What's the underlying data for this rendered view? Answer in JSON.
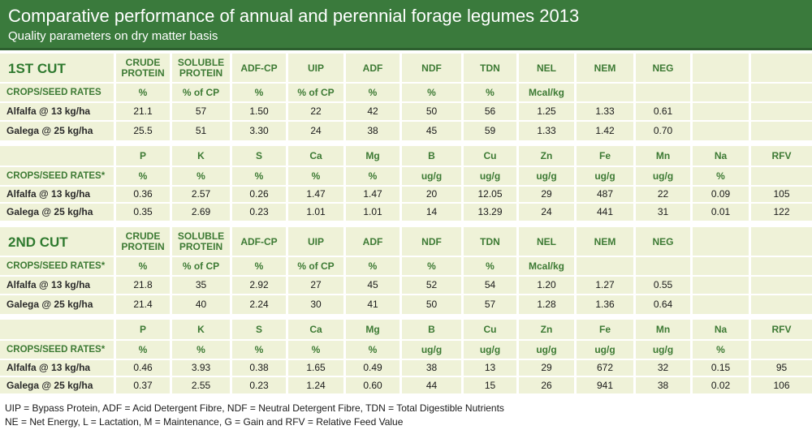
{
  "title": "Comparative performance of annual and perennial forage legumes 2013",
  "subtitle": "Quality parameters on dry matter basis",
  "sections": [
    {
      "cut_label": "1ST CUT",
      "quality": {
        "headers": [
          "CRUDE PROTEIN",
          "SOLUBLE PROTEIN",
          "ADF-CP",
          "UIP",
          "ADF",
          "NDF",
          "TDN",
          "NEL",
          "NEM",
          "NEG",
          "",
          ""
        ],
        "rates_label": "CROPS/SEED RATES",
        "units": [
          "%",
          "% of CP",
          "%",
          "% of CP",
          "%",
          "%",
          "%",
          "Mcal/kg",
          "",
          "",
          "",
          ""
        ],
        "rows": [
          {
            "crop": "Alfalfa @ 13 kg/ha",
            "values": [
              "21.1",
              "57",
              "1.50",
              "22",
              "42",
              "50",
              "56",
              "1.25",
              "1.33",
              "0.61",
              "",
              ""
            ]
          },
          {
            "crop": "Galega @ 25 kg/ha",
            "values": [
              "25.5",
              "51",
              "3.30",
              "24",
              "38",
              "45",
              "59",
              "1.33",
              "1.42",
              "0.70",
              "",
              ""
            ]
          }
        ]
      },
      "minerals": {
        "headers": [
          "P",
          "K",
          "S",
          "Ca",
          "Mg",
          "B",
          "Cu",
          "Zn",
          "Fe",
          "Mn",
          "Na",
          "RFV"
        ],
        "rates_label": "CROPS/SEED RATES*",
        "units": [
          "%",
          "%",
          "%",
          "%",
          "%",
          "ug/g",
          "ug/g",
          "ug/g",
          "ug/g",
          "ug/g",
          "%",
          ""
        ],
        "rows": [
          {
            "crop": "Alfalfa @ 13 kg/ha",
            "values": [
              "0.36",
              "2.57",
              "0.26",
              "1.47",
              "1.47",
              "20",
              "12.05",
              "29",
              "487",
              "22",
              "0.09",
              "105"
            ]
          },
          {
            "crop": "Galega @ 25 kg/ha",
            "values": [
              "0.35",
              "2.69",
              "0.23",
              "1.01",
              "1.01",
              "14",
              "13.29",
              "24",
              "441",
              "31",
              "0.01",
              "122"
            ]
          }
        ]
      }
    },
    {
      "cut_label": "2ND CUT",
      "quality": {
        "headers": [
          "CRUDE PROTEIN",
          "SOLUBLE PROTEIN",
          "ADF-CP",
          "UIP",
          "ADF",
          "NDF",
          "TDN",
          "NEL",
          "NEM",
          "NEG",
          "",
          ""
        ],
        "rates_label": "CROPS/SEED RATES*",
        "units": [
          "%",
          "% of CP",
          "%",
          "% of CP",
          "%",
          "%",
          "%",
          "Mcal/kg",
          "",
          "",
          "",
          ""
        ],
        "rows": [
          {
            "crop": "Alfalfa @ 13 kg/ha",
            "values": [
              "21.8",
              "35",
              "2.92",
              "27",
              "45",
              "52",
              "54",
              "1.20",
              "1.27",
              "0.55",
              "",
              ""
            ]
          },
          {
            "crop": "Galega @ 25 kg/ha",
            "values": [
              "21.4",
              "40",
              "2.24",
              "30",
              "41",
              "50",
              "57",
              "1.28",
              "1.36",
              "0.64",
              "",
              ""
            ]
          }
        ]
      },
      "minerals": {
        "headers": [
          "P",
          "K",
          "S",
          "Ca",
          "Mg",
          "B",
          "Cu",
          "Zn",
          "Fe",
          "Mn",
          "Na",
          "RFV"
        ],
        "rates_label": "CROPS/SEED RATES*",
        "units": [
          "%",
          "%",
          "%",
          "%",
          "%",
          "ug/g",
          "ug/g",
          "ug/g",
          "ug/g",
          "ug/g",
          "%",
          ""
        ],
        "rows": [
          {
            "crop": "Alfalfa @ 13 kg/ha",
            "values": [
              "0.46",
              "3.93",
              "0.38",
              "1.65",
              "0.49",
              "38",
              "13",
              "29",
              "672",
              "32",
              "0.15",
              "95"
            ]
          },
          {
            "crop": "Galega @ 25 kg/ha",
            "values": [
              "0.37",
              "2.55",
              "0.23",
              "1.24",
              "0.60",
              "44",
              "15",
              "26",
              "941",
              "38",
              "0.02",
              "106"
            ]
          }
        ]
      }
    }
  ],
  "footnotes": [
    "UIP = Bypass Protein, ADF = Acid Detergent Fibre, NDF = Neutral Detergent Fibre, TDN = Total Digestible Nutrients",
    "NE = Net Energy, L = Lactation, M = Maintenance, G = Gain and RFV = Relative Feed Value"
  ]
}
